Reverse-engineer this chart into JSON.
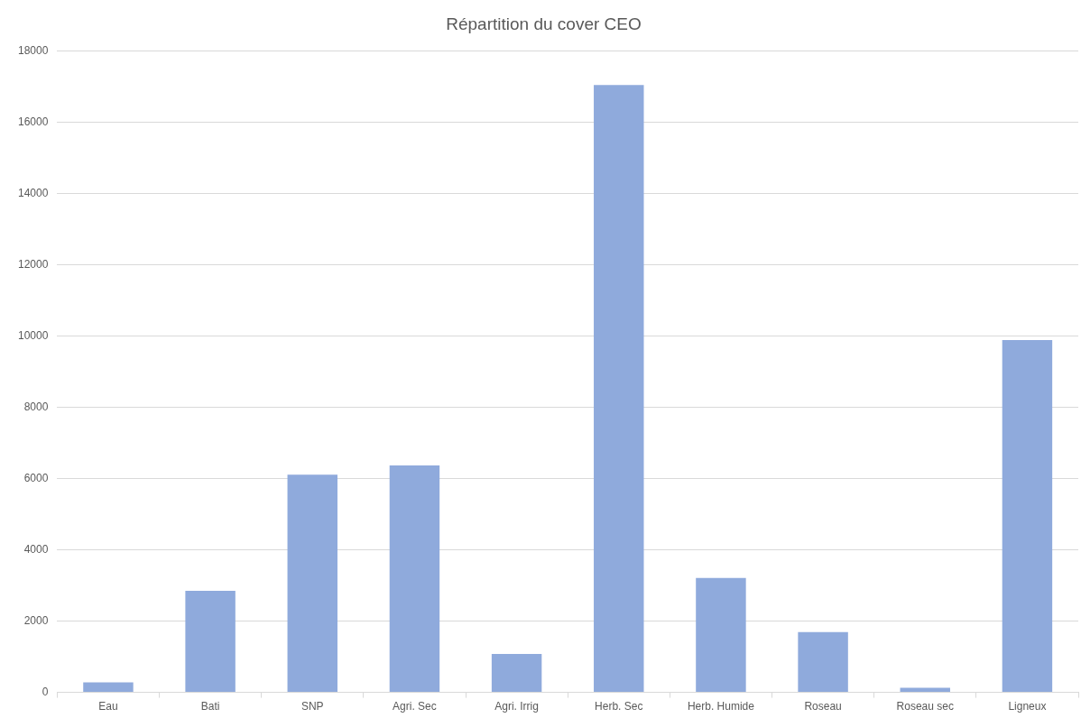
{
  "chart_data": {
    "type": "bar",
    "title": "Répartition du cover CEO",
    "categories": [
      "Eau",
      "Bati",
      "SNP",
      "Agri. Sec",
      "Agri. Irrig",
      "Herb. Sec",
      "Herb. Humide",
      "Roseau",
      "Roseau sec",
      "Ligneux"
    ],
    "values": [
      280,
      2850,
      6110,
      6370,
      1080,
      17050,
      3210,
      1690,
      130,
      9890
    ],
    "color": "#8faadc",
    "ylim": [
      0,
      18000
    ],
    "yticks": [
      0,
      2000,
      4000,
      6000,
      8000,
      10000,
      12000,
      14000,
      16000,
      18000
    ],
    "grid": "y",
    "legend": false
  }
}
